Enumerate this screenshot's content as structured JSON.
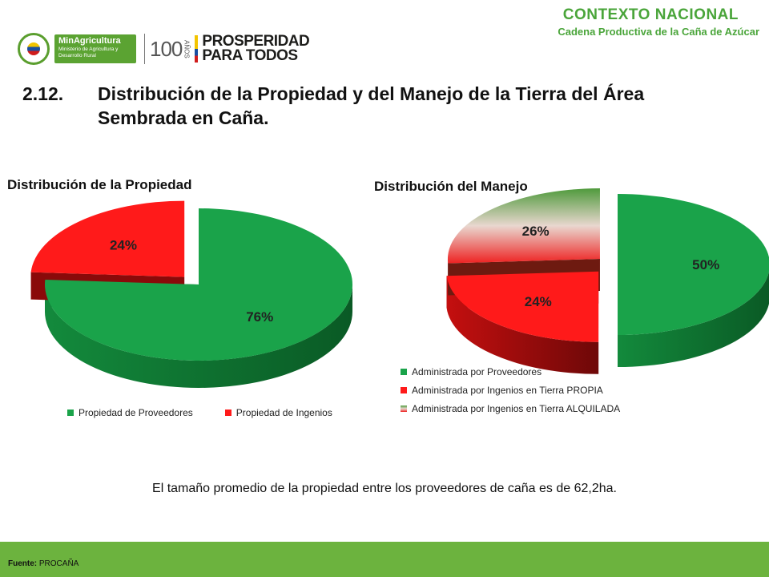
{
  "header": {
    "context_title": "CONTEXTO NACIONAL",
    "context_subtitle": "Cadena Productiva de la Caña de Azúcar"
  },
  "logos": {
    "ministry_name": "MinAgricultura",
    "ministry_detail": "Ministerio de Agricultura y Desarrollo Rural",
    "hundred": "100",
    "years": "AÑOS",
    "prosperity_line1": "PROSPERIDAD",
    "prosperity_line2": "PARA TODOS"
  },
  "slide": {
    "number": "2.12.",
    "title": "Distribución de la Propiedad y del Manejo de la Tierra del Área Sembrada en Caña."
  },
  "colors": {
    "green": "#1aa34a",
    "green_dark": "#0c6b2c",
    "red": "#ff1a1a",
    "red_dark": "#8a0a0a",
    "footer_green": "#6cb33e"
  },
  "chart_data": [
    {
      "type": "pie",
      "title": "Distribución de la Propiedad",
      "categories": [
        "Propiedad de Proveedores",
        "Propiedad de Ingenios"
      ],
      "values": [
        76,
        24
      ],
      "labels": [
        "76%",
        "24%"
      ],
      "legend_position": "bottom"
    },
    {
      "type": "pie",
      "title": "Distribución del Manejo",
      "categories": [
        "Administrada por Proveedores",
        "Administrada por Ingenios en Tierra PROPIA",
        "Administrada por Ingenios en Tierra ALQUILADA"
      ],
      "values": [
        50,
        24,
        26
      ],
      "labels": [
        "50%",
        "24%",
        "26%"
      ],
      "legend_position": "bottom"
    }
  ],
  "note": "El tamaño promedio de la propiedad entre los proveedores de caña es de 62,2ha.",
  "footer": {
    "source_label": "Fuente:",
    "source_value": "PROCAÑA"
  }
}
